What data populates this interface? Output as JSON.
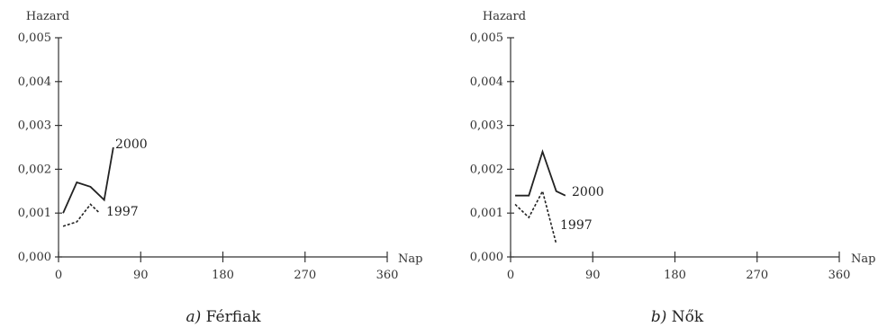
{
  "chart_data": [
    {
      "type": "line",
      "caption_letter": "a)",
      "caption_text": "Férfiak",
      "ylabel": "Hazard",
      "xlabel": "Nap",
      "ylim": [
        0,
        0.005
      ],
      "xlim": [
        0,
        360
      ],
      "y_ticks": [
        "0,000",
        "0,001",
        "0,002",
        "0,003",
        "0,004",
        "0,005"
      ],
      "x_ticks": [
        "0",
        "90",
        "180",
        "270",
        "360"
      ],
      "series": [
        {
          "name": "2000",
          "style": "solid",
          "x": [
            5,
            20,
            35,
            50,
            60
          ],
          "y": [
            0.001,
            0.0017,
            0.0016,
            0.0013,
            0.0025
          ]
        },
        {
          "name": "1997",
          "style": "dashed",
          "x": [
            5,
            20,
            35,
            45
          ],
          "y": [
            0.0007,
            0.0008,
            0.0012,
            0.001
          ]
        }
      ]
    },
    {
      "type": "line",
      "caption_letter": "b)",
      "caption_text": "Nők",
      "ylabel": "Hazard",
      "xlabel": "Nap",
      "ylim": [
        0,
        0.005
      ],
      "xlim": [
        0,
        360
      ],
      "y_ticks": [
        "0,000",
        "0,001",
        "0,002",
        "0,003",
        "0,004",
        "0,005"
      ],
      "x_ticks": [
        "0",
        "90",
        "180",
        "270",
        "360"
      ],
      "series": [
        {
          "name": "2000",
          "style": "solid",
          "x": [
            5,
            20,
            35,
            50,
            60
          ],
          "y": [
            0.0014,
            0.0014,
            0.0024,
            0.0015,
            0.0014
          ]
        },
        {
          "name": "1997",
          "style": "dashed",
          "x": [
            5,
            20,
            35,
            50
          ],
          "y": [
            0.0012,
            0.0009,
            0.0015,
            0.0003
          ]
        }
      ]
    }
  ]
}
